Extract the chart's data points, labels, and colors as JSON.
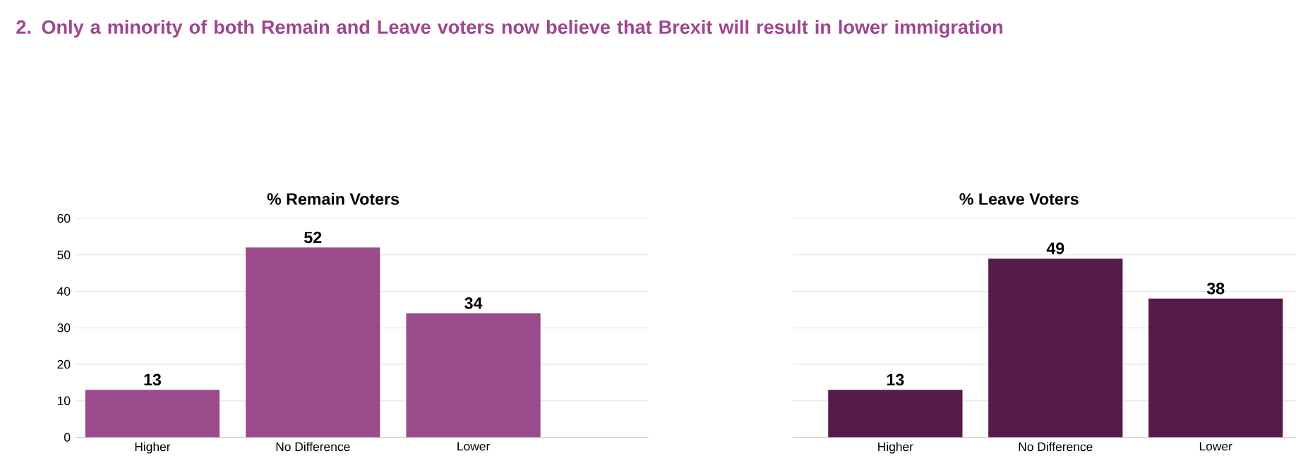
{
  "chart_data": [
    {
      "type": "bar",
      "title": "2. Only a minority of both Remain and Leave voters now believe that Brexit will result in lower immigration",
      "subtitle": "% Remain Voters",
      "categories": [
        "Higher",
        "No Difference",
        "Lower"
      ],
      "values": [
        13,
        52,
        34
      ],
      "color": "#9b4a8c",
      "data_labels": true,
      "ylim": [
        0,
        60
      ],
      "yticks": [
        0,
        10,
        20,
        30,
        40,
        50,
        60
      ],
      "grid": "y"
    },
    {
      "type": "bar",
      "title": "% Leave Voters",
      "categories": [
        "Higher",
        "No Difference",
        "Lower"
      ],
      "values": [
        13,
        49,
        38
      ],
      "color": "#561a4b",
      "data_labels": true,
      "ylim": [
        0,
        60
      ],
      "yticks": [
        0,
        10,
        20,
        30,
        40,
        50,
        60
      ],
      "grid": "y",
      "tick_labels": "x"
    }
  ]
}
